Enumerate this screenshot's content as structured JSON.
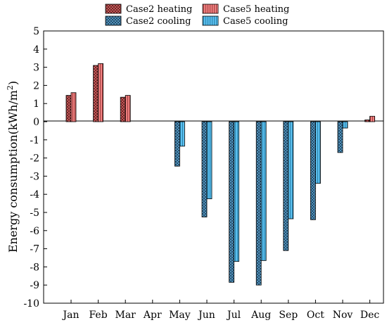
{
  "chart_data": {
    "type": "bar",
    "ylabel_main": "Energy consumption",
    "ylabel_unit_open": "(kWh/m",
    "ylabel_unit_sup": "2",
    "ylabel_unit_close": ")",
    "ylim": [
      -10,
      5
    ],
    "yticks": [
      5,
      4,
      3,
      2,
      1,
      0,
      -1,
      -2,
      -3,
      -4,
      -5,
      -6,
      -7,
      -8,
      -9,
      -10
    ],
    "categories": [
      "Jan",
      "Feb",
      "Mar",
      "Apr",
      "May",
      "Jun",
      "Jul",
      "Aug",
      "Sep",
      "Oct",
      "Nov",
      "Dec"
    ],
    "legend_placement": "top, outside plot",
    "series": [
      {
        "name": "Case2 heating",
        "color": "#e06666",
        "pattern": "crosshatch",
        "values": [
          1.45,
          3.1,
          1.35,
          0,
          0,
          0,
          0,
          0,
          0,
          0,
          0,
          0.1
        ]
      },
      {
        "name": "Case5 heating",
        "color": "#f08080",
        "pattern": "vertical-lines",
        "values": [
          1.6,
          3.2,
          1.45,
          0,
          0,
          0,
          0,
          0,
          0,
          0,
          0,
          0.3
        ]
      },
      {
        "name": "Case2 cooling",
        "color": "#5fa8d3",
        "pattern": "crosshatch",
        "values": [
          0,
          0,
          0,
          0,
          -2.45,
          -5.25,
          -8.85,
          -9.0,
          -7.1,
          -5.4,
          -1.7,
          0
        ]
      },
      {
        "name": "Case5 cooling",
        "color": "#5bc0f0",
        "pattern": "vertical-lines",
        "values": [
          0,
          0,
          0,
          0,
          -1.35,
          -4.25,
          -7.7,
          -7.65,
          -5.35,
          -3.4,
          -0.35,
          0
        ]
      }
    ]
  }
}
